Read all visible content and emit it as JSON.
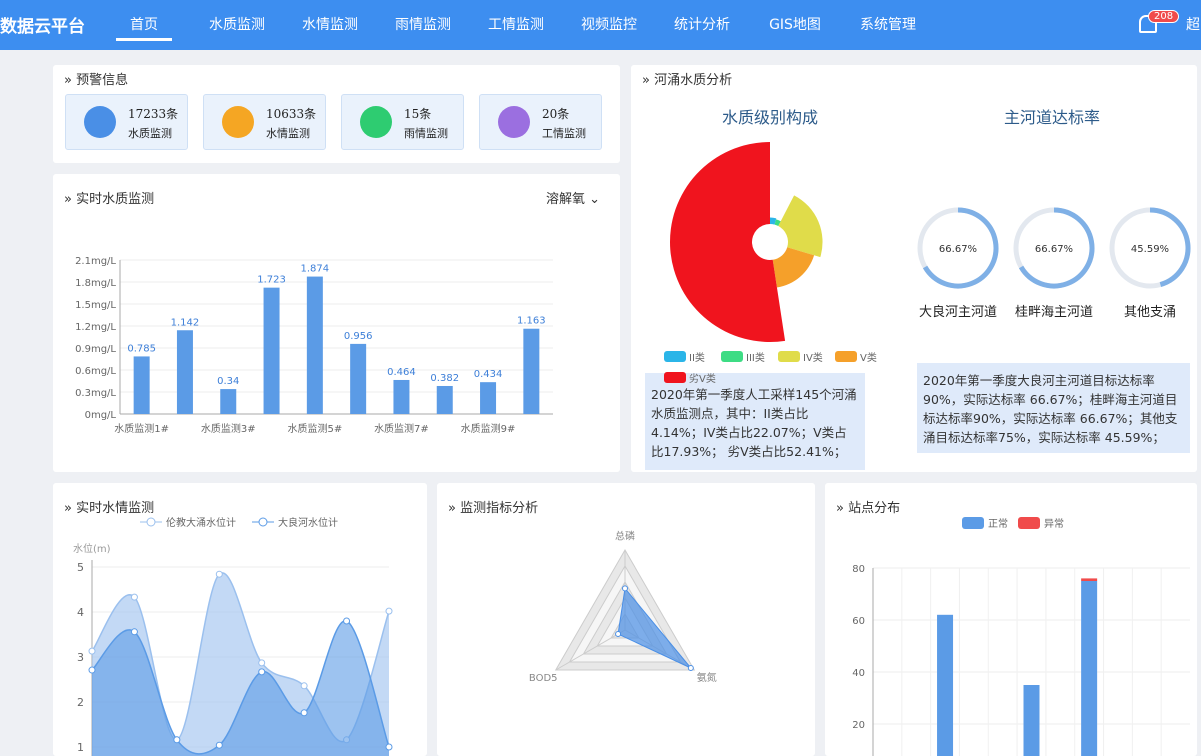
{
  "header": {
    "brand": "数据云平台",
    "nav": [
      "首页",
      "水质监测",
      "水情监测",
      "雨情监测",
      "工情监测",
      "视频监控",
      "统计分析",
      "GIS地图",
      "系统管理"
    ],
    "badge": "208",
    "user": "超"
  },
  "panels": {
    "warning": "预警信息",
    "water_quality": "实时水质监测",
    "river": "河涌水质分析",
    "water_level": "实时水情监测",
    "indicators": "监测指标分析",
    "sites": "站点分布"
  },
  "warning_cards": [
    {
      "count": "17233条",
      "label": "水质监测",
      "color": "#4a8fe6"
    },
    {
      "count": "10633条",
      "label": "水情监测",
      "color": "#f5a623"
    },
    {
      "count": "15条",
      "label": "雨情监测",
      "color": "#2ecc71"
    },
    {
      "count": "20条",
      "label": "工情监测",
      "color": "#9b6fe0"
    }
  ],
  "chart_data": [
    {
      "type": "bar",
      "selector": "溶解氧",
      "categories": [
        "水质监测1#",
        null,
        "水质监测3#",
        null,
        "水质监测5#",
        null,
        "水质监测7#",
        null,
        "水质监测9#",
        null
      ],
      "values": [
        0.785,
        1.142,
        0.34,
        1.723,
        1.874,
        0.956,
        0.464,
        0.382,
        0.434,
        1.163
      ],
      "color": "#5b9be6",
      "ylim": [
        0,
        2.1
      ],
      "yticks": [
        {
          "value": 0,
          "label": "0mg/L"
        },
        {
          "value": 0.3,
          "label": "0.3mg/L"
        },
        {
          "value": 0.6,
          "label": "0.6mg/L"
        },
        {
          "value": 0.9,
          "label": "0.9mg/L"
        },
        {
          "value": 1.2,
          "label": "1.2mg/L"
        },
        {
          "value": 1.5,
          "label": "1.5mg/L"
        },
        {
          "value": 1.8,
          "label": "1.8mg/L"
        },
        {
          "value": 2.1,
          "label": "2.1mg/L"
        }
      ],
      "grid": true
    },
    {
      "type": "pie",
      "rose": true,
      "title": "水质级别构成",
      "categories": [
        "II类",
        "III类",
        "IV类",
        "V类",
        "劣V类"
      ],
      "values": [
        4.14,
        3.45,
        22.07,
        17.93,
        52.41
      ],
      "colors": [
        "#2bb5e8",
        "#3ddc84",
        "#e0dc4a",
        "#f5a02a",
        "#f0141e"
      ],
      "description": "2020年第一季度人工采样145个河涌水质监测点，其中：II类占比4.14%；IV类占比22.07%；V类占比17.93%； 劣V类占比52.41%；"
    },
    {
      "type": "gauge",
      "title": "主河道达标率",
      "categories": [
        "大良河主河道",
        "桂畔海主河道",
        "其他支涌"
      ],
      "values": [
        66.67,
        66.67,
        45.59
      ],
      "value_labels": [
        "66.67%",
        "66.67%",
        "45.59%"
      ],
      "lim": [
        0,
        100
      ],
      "color": "#7fb0e6",
      "description": "2020年第一季度大良河主河道目标达标率90%，实际达标率 66.67%；桂畔海主河道目标达标率90%，实际达标率 66.67%；其他支涌目标达标率75%，实际达标率 45.59%；"
    },
    {
      "type": "line",
      "smooth": true,
      "area": true,
      "y_label": "水位(m)",
      "categories": [
        null,
        null,
        null,
        null,
        null,
        null,
        null,
        null
      ],
      "series": [
        {
          "name": "伦教大涌水位计",
          "color": "#9bc0ee",
          "values": [
            3.13,
            4.33,
            1.16,
            4.84,
            2.87,
            2.36,
            1.16,
            4.02
          ]
        },
        {
          "name": "大良河水位计",
          "color": "#5b9be6",
          "values": [
            2.71,
            3.56,
            1.16,
            1.04,
            2.67,
            1.76,
            3.8,
            1.0
          ]
        }
      ],
      "ylim": [
        0,
        5
      ],
      "yticks": [
        1,
        2,
        3,
        4,
        5
      ],
      "grid": true
    },
    {
      "type": "radar",
      "indicators": [
        "总磷",
        "氨氮",
        "BOD5"
      ],
      "values": [
        0.52,
        0.95,
        0.1
      ],
      "rlim": [
        0,
        1
      ],
      "color": "#4a8fe6"
    },
    {
      "type": "stacked_bar",
      "categories": [
        null,
        null,
        null,
        null,
        null,
        null,
        null,
        null,
        null,
        null,
        null
      ],
      "series": [
        {
          "name": "正常",
          "color": "#5b9be6",
          "values": [
            0,
            0,
            62,
            0,
            0,
            35,
            0,
            75,
            0,
            0,
            0
          ]
        },
        {
          "name": "异常",
          "color": "#f04b4b",
          "values": [
            0,
            0,
            0,
            0,
            0,
            0,
            0,
            1,
            0,
            0,
            0
          ]
        }
      ],
      "ylim": [
        0,
        80
      ],
      "yticks": [
        20,
        40,
        60,
        80
      ],
      "grid": true
    }
  ]
}
